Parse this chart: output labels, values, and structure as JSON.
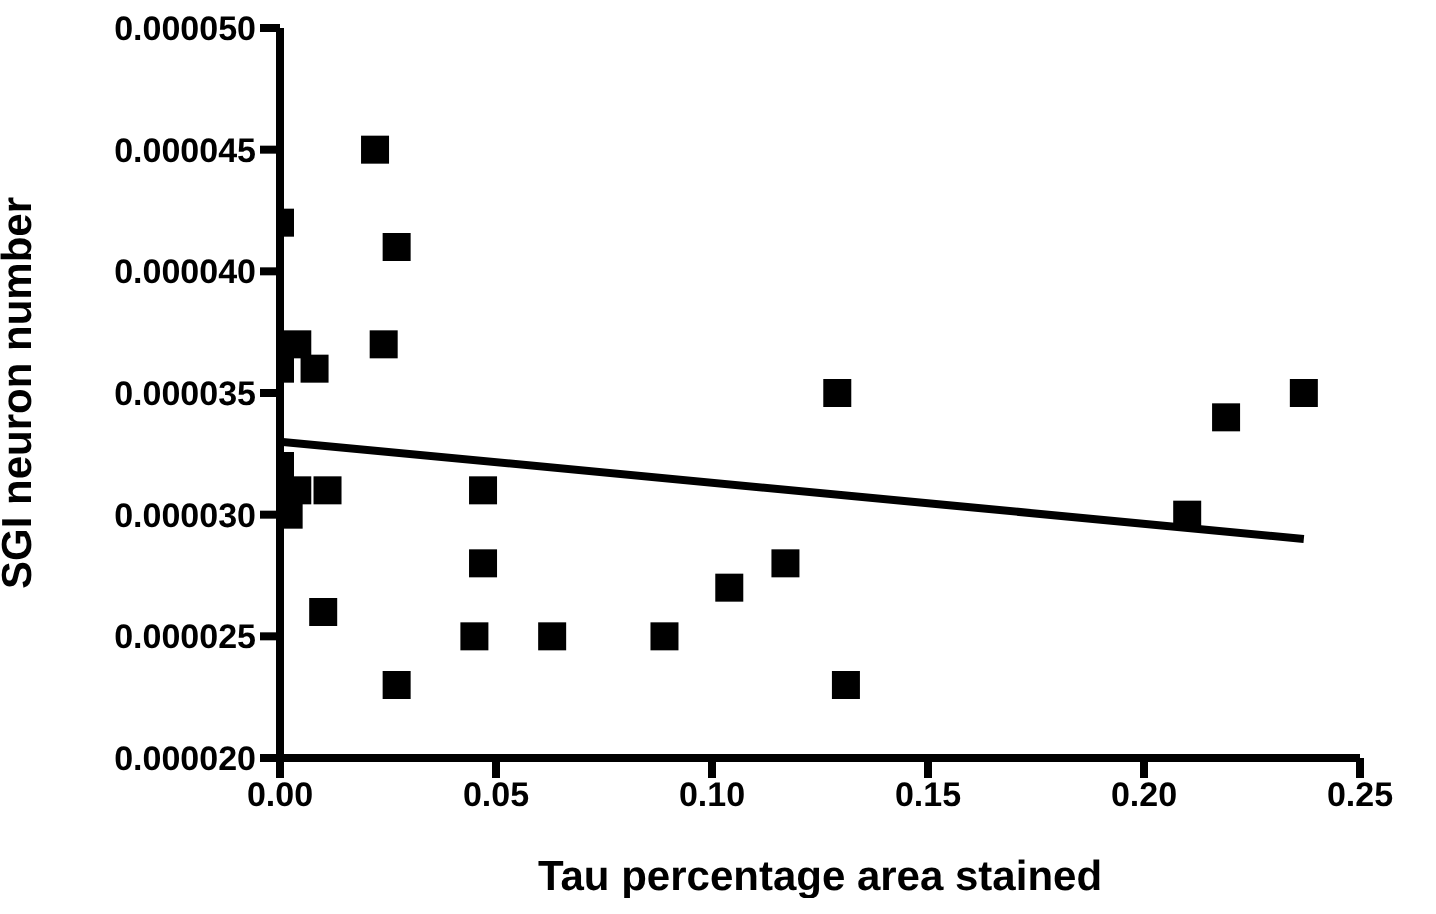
{
  "chart_data": {
    "type": "scatter",
    "xlabel": "Tau percentage area stained",
    "ylabel": "SGI neuron number",
    "grid": false,
    "xlim": [
      0,
      0.25
    ],
    "xticks": [
      {
        "value": 0,
        "label": "0.00"
      },
      {
        "value": 0.05,
        "label": "0.05"
      },
      {
        "value": 0.1,
        "label": "0.10"
      },
      {
        "value": 0.15,
        "label": "0.15"
      },
      {
        "value": 0.2,
        "label": "0.20"
      },
      {
        "value": 0.25,
        "label": "0.25"
      }
    ],
    "ylim": [
      2e-05,
      5e-05
    ],
    "yticks": [
      {
        "value": 2e-05,
        "label": "0.000020"
      },
      {
        "value": 2.5e-05,
        "label": "0.000025"
      },
      {
        "value": 3e-05,
        "label": "0.000030"
      },
      {
        "value": 3.5e-05,
        "label": "0.000035"
      },
      {
        "value": 4e-05,
        "label": "0.000040"
      },
      {
        "value": 4.5e-05,
        "label": "0.000045"
      },
      {
        "value": 5e-05,
        "label": "0.000050"
      }
    ],
    "series": [
      {
        "marker": "square",
        "color": "#000000",
        "x": [
          0,
          0.022,
          0.027,
          0,
          0.004,
          0.008,
          0.024,
          0,
          0.002,
          0.004,
          0.011,
          0.047,
          0.047,
          0.01,
          0.027,
          0.045,
          0.063,
          0.089,
          0.104,
          0.117,
          0.129,
          0.131,
          0.21,
          0.219,
          0.237
        ],
        "values": [
          4.2e-05,
          4.5e-05,
          4.1e-05,
          3.6e-05,
          3.7e-05,
          3.6e-05,
          3.7e-05,
          3.2e-05,
          3e-05,
          3.1e-05,
          3.1e-05,
          3.1e-05,
          2.8e-05,
          2.6e-05,
          2.3e-05,
          2.5e-05,
          2.5e-05,
          2.5e-05,
          2.7e-05,
          2.8e-05,
          3.5e-05,
          2.3e-05,
          3e-05,
          3.4e-05,
          3.5e-05
        ]
      },
      {
        "type": "line",
        "marker": "none",
        "color": "#000000",
        "x": [
          0,
          0.237
        ],
        "values": [
          3.3e-05,
          2.9e-05
        ]
      }
    ]
  }
}
